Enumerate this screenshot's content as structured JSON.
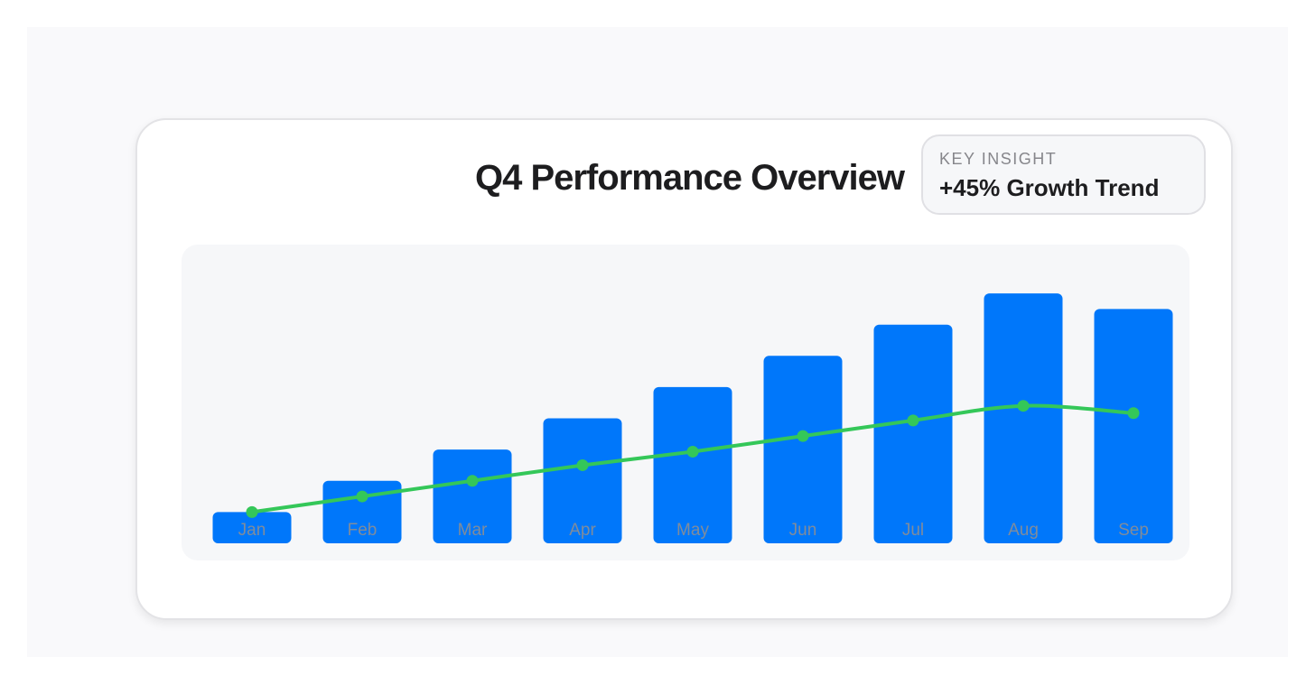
{
  "header": {
    "title": "Q4 Performance Overview"
  },
  "insight": {
    "label": "KEY INSIGHT",
    "value": "+45% Growth Trend"
  },
  "colors": {
    "bar": "#0077fa",
    "trend": "#34c759",
    "label": "#7f8c9c"
  },
  "chart_data": {
    "type": "bar",
    "categories": [
      "Jan",
      "Feb",
      "Mar",
      "Apr",
      "May",
      "Jun",
      "Jul",
      "Aug",
      "Sep"
    ],
    "series": [
      {
        "type": "bar",
        "values": [
          15,
          30,
          45,
          60,
          75,
          90,
          105,
          120,
          112.5
        ]
      },
      {
        "type": "line",
        "values": [
          15,
          22.5,
          30,
          37.5,
          44,
          51.5,
          59,
          66,
          62.5
        ]
      }
    ],
    "ylim": [
      0,
      130
    ],
    "grid": false,
    "legend": "none"
  }
}
